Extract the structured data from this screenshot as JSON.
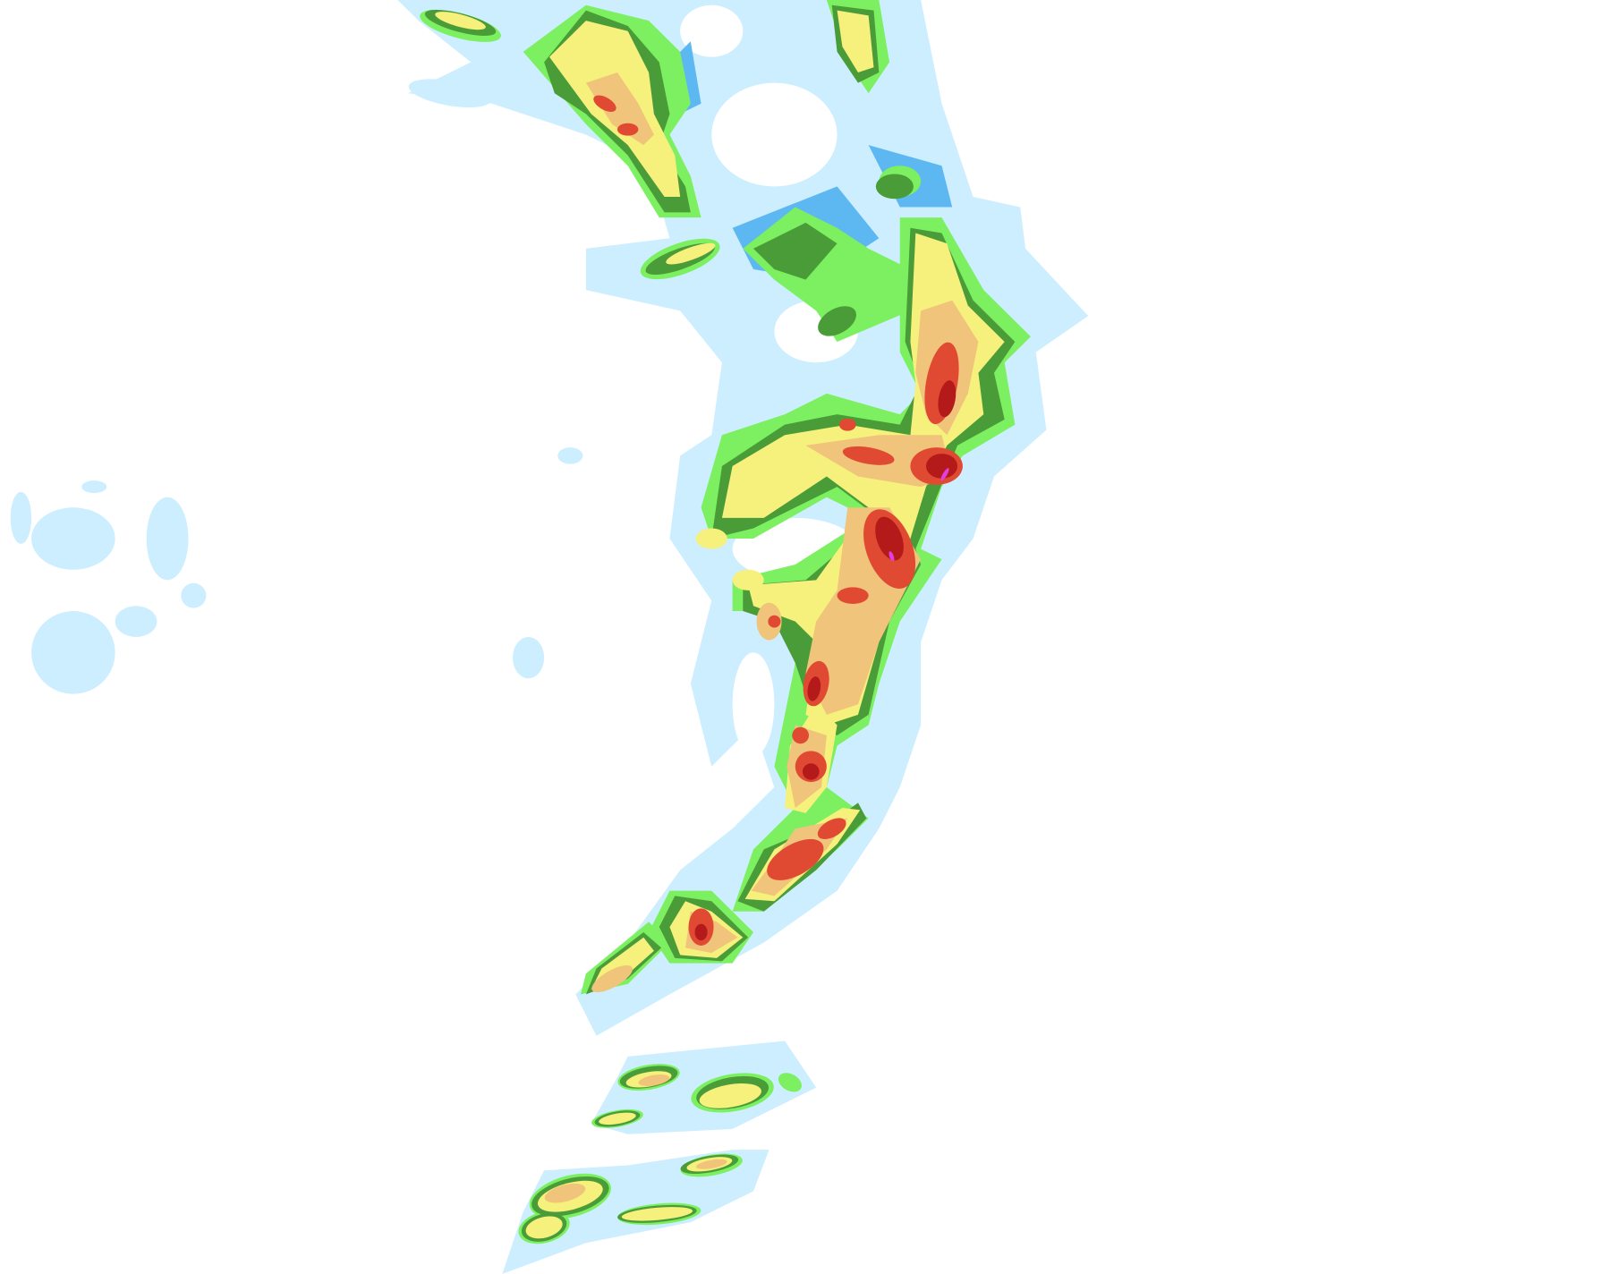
{
  "map": {
    "type": "precipitation-radar",
    "background": "#ffffff",
    "intensity_colors": {
      "very_light": "#cdeefe",
      "light": "#5db8f2",
      "moderate_light": "#7cf060",
      "moderate": "#4a9c38",
      "heavy_light": "#f6f07c",
      "heavy": "#f0c47a",
      "very_heavy": "#e04a32",
      "intense": "#b41a1a",
      "extreme": "#e040e0"
    }
  }
}
